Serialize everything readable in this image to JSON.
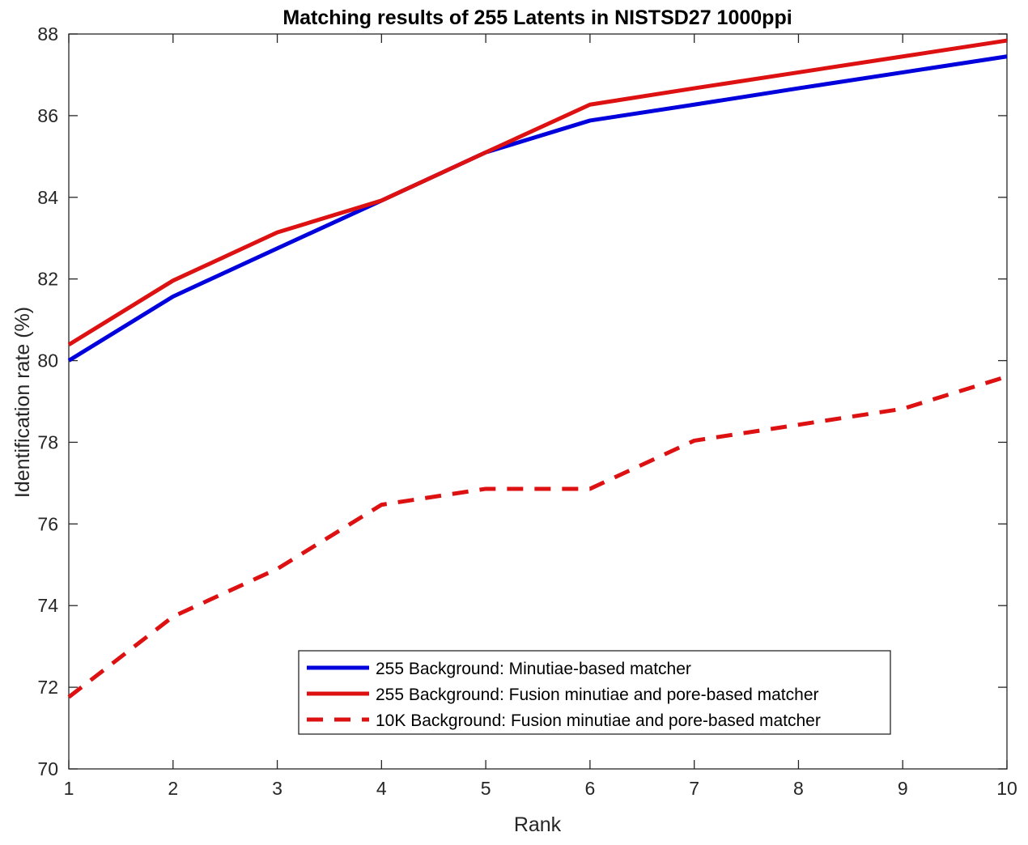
{
  "chart_data": {
    "type": "line",
    "title": "Matching results of 255 Latents in NISTSD27 1000ppi",
    "xlabel": "Rank",
    "ylabel": "Identification rate (%)",
    "x": [
      1,
      2,
      3,
      4,
      5,
      6,
      7,
      8,
      9,
      10
    ],
    "xlim": [
      1,
      10
    ],
    "ylim": [
      70,
      88
    ],
    "xticks": [
      1,
      2,
      3,
      4,
      5,
      6,
      7,
      8,
      9,
      10
    ],
    "yticks": [
      70,
      72,
      74,
      76,
      78,
      80,
      82,
      84,
      86,
      88
    ],
    "grid": false,
    "legend_position": "bottom-center",
    "series": [
      {
        "name": "255 Background: Minutiae-based matcher",
        "color": "#0000dd",
        "style": "solid",
        "values": [
          80.0,
          81.57,
          82.75,
          83.92,
          85.1,
          85.88,
          86.27,
          86.67,
          87.06,
          87.45
        ]
      },
      {
        "name": "255 Background: Fusion minutiae and pore-based matcher",
        "color": "#dd1111",
        "style": "solid",
        "values": [
          80.39,
          81.96,
          83.14,
          83.92,
          85.1,
          86.27,
          86.67,
          87.06,
          87.45,
          87.84
        ]
      },
      {
        "name": "10K Background: Fusion minutiae and pore-based matcher",
        "color": "#dd1111",
        "style": "dashed",
        "values": [
          71.76,
          73.73,
          74.9,
          76.47,
          76.86,
          76.86,
          78.04,
          78.43,
          78.82,
          79.61
        ]
      }
    ]
  }
}
